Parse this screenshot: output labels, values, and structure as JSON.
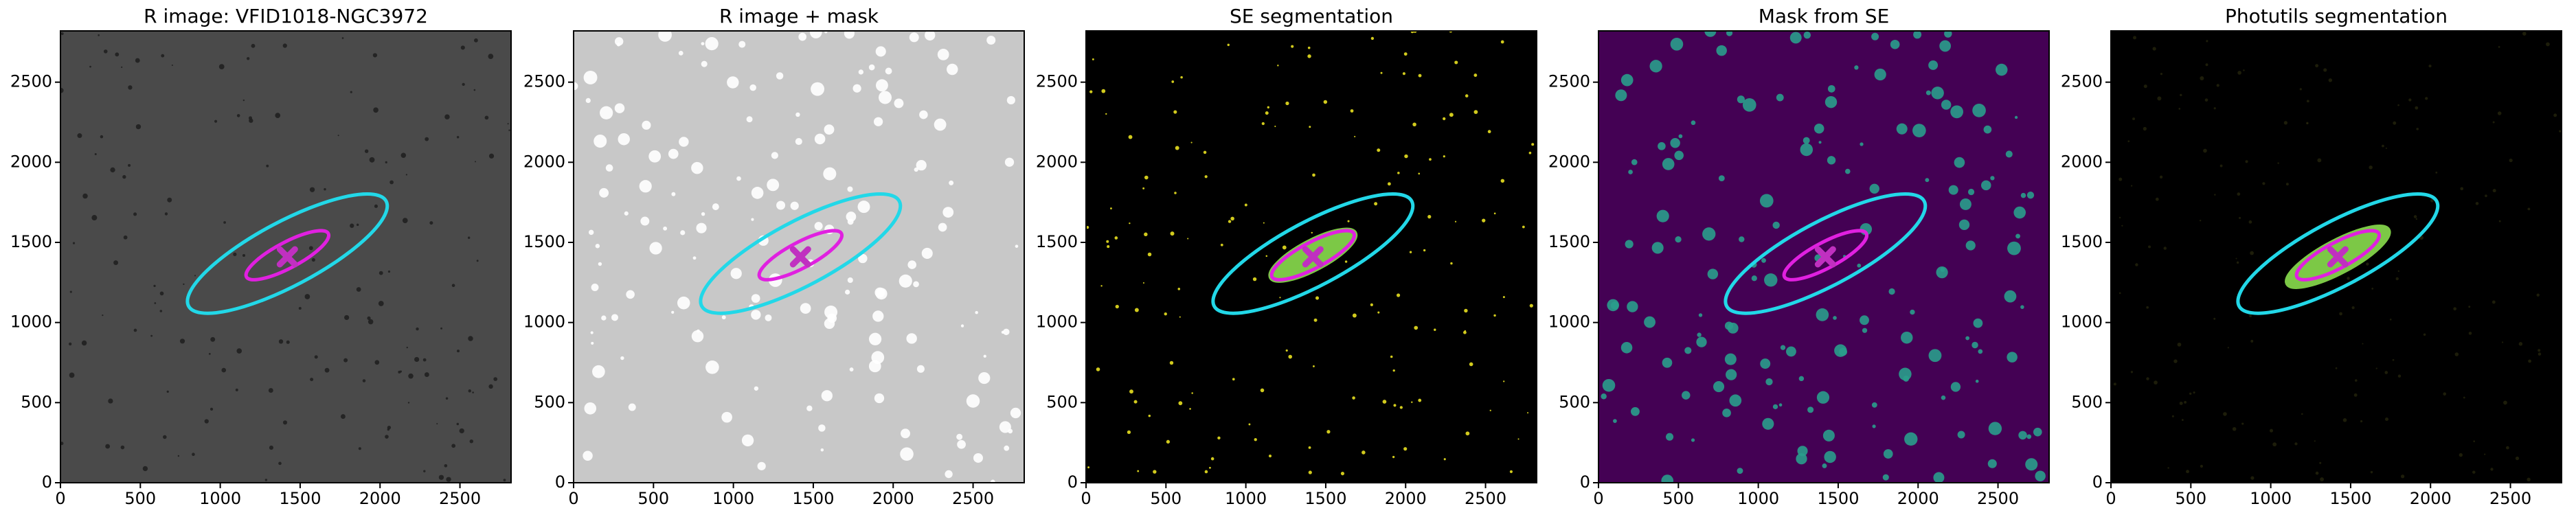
{
  "chart_data": [
    {
      "type": "image",
      "title": "R image: VFID1018-NGC3972",
      "background": "#4a4a4a",
      "texture": "#202020",
      "xlim": [
        0,
        2820
      ],
      "ylim": [
        0,
        2820
      ],
      "xticks": [
        0,
        500,
        1000,
        1500,
        2000,
        2500
      ],
      "yticks": [
        0,
        500,
        1000,
        1500,
        2000,
        2500
      ],
      "ellipses": [
        {
          "x": 1420,
          "y": 1430,
          "a": 700,
          "b": 200,
          "angle": 28,
          "color": "#22d8e8",
          "fill": "none"
        },
        {
          "x": 1420,
          "y": 1420,
          "a": 290,
          "b": 80,
          "angle": 28,
          "color": "#e020e0",
          "fill": "none"
        }
      ],
      "marker": {
        "x": 1420,
        "y": 1410,
        "color": "#c030c0"
      }
    },
    {
      "type": "image",
      "title": "R image + mask",
      "background": "#c8c8c8",
      "texture": "#ffffff",
      "xlim": [
        0,
        2820
      ],
      "ylim": [
        0,
        2820
      ],
      "xticks": [
        0,
        500,
        1000,
        1500,
        2000,
        2500
      ],
      "yticks": [
        0,
        500,
        1000,
        1500,
        2000,
        2500
      ],
      "ellipses": [
        {
          "x": 1420,
          "y": 1430,
          "a": 700,
          "b": 200,
          "angle": 28,
          "color": "#22d8e8",
          "fill": "none"
        },
        {
          "x": 1420,
          "y": 1420,
          "a": 290,
          "b": 80,
          "angle": 28,
          "color": "#e020e0",
          "fill": "none"
        }
      ],
      "marker": {
        "x": 1420,
        "y": 1410,
        "color": "#c030c0"
      }
    },
    {
      "type": "image",
      "title": "SE segmentation",
      "background": "#000000",
      "texture": "#e8e020",
      "xlim": [
        0,
        2820
      ],
      "ylim": [
        0,
        2820
      ],
      "xticks": [
        0,
        500,
        1000,
        1500,
        2000,
        2500
      ],
      "yticks": [
        0,
        500,
        1000,
        1500,
        2000,
        2500
      ],
      "ellipses": [
        {
          "x": 1420,
          "y": 1420,
          "a": 300,
          "b": 90,
          "angle": 28,
          "color": "#7cc846",
          "fill": "#7cc846"
        },
        {
          "x": 1420,
          "y": 1430,
          "a": 700,
          "b": 200,
          "angle": 28,
          "color": "#22d8e8",
          "fill": "none"
        },
        {
          "x": 1420,
          "y": 1420,
          "a": 290,
          "b": 80,
          "angle": 28,
          "color": "#e020e0",
          "fill": "none"
        }
      ],
      "marker": {
        "x": 1420,
        "y": 1410,
        "color": "#c030c0"
      }
    },
    {
      "type": "image",
      "title": "Mask from SE",
      "background": "#440154",
      "texture": "#2a9d8c",
      "xlim": [
        0,
        2820
      ],
      "ylim": [
        0,
        2820
      ],
      "xticks": [
        0,
        500,
        1000,
        1500,
        2000,
        2500
      ],
      "yticks": [
        0,
        500,
        1000,
        1500,
        2000,
        2500
      ],
      "ellipses": [
        {
          "x": 1420,
          "y": 1430,
          "a": 700,
          "b": 200,
          "angle": 28,
          "color": "#22d8e8",
          "fill": "none"
        },
        {
          "x": 1420,
          "y": 1420,
          "a": 290,
          "b": 80,
          "angle": 28,
          "color": "#e020e0",
          "fill": "none"
        }
      ],
      "marker": {
        "x": 1420,
        "y": 1410,
        "color": "#c030c0"
      }
    },
    {
      "type": "image",
      "title": "Photutils segmentation",
      "background": "#000000",
      "texture": "#303010",
      "xlim": [
        0,
        2820
      ],
      "ylim": [
        0,
        2820
      ],
      "xticks": [
        0,
        500,
        1000,
        1500,
        2000,
        2500
      ],
      "yticks": [
        0,
        500,
        1000,
        1500,
        2000,
        2500
      ],
      "ellipses": [
        {
          "x": 1420,
          "y": 1410,
          "a": 360,
          "b": 100,
          "angle": 28,
          "color": "#7cc846",
          "fill": "#7cc846"
        },
        {
          "x": 1420,
          "y": 1430,
          "a": 700,
          "b": 200,
          "angle": 28,
          "color": "#22d8e8",
          "fill": "none"
        },
        {
          "x": 1420,
          "y": 1420,
          "a": 290,
          "b": 80,
          "angle": 28,
          "color": "#e020e0",
          "fill": "none"
        }
      ],
      "marker": {
        "x": 1420,
        "y": 1410,
        "color": "#c030c0"
      }
    }
  ]
}
